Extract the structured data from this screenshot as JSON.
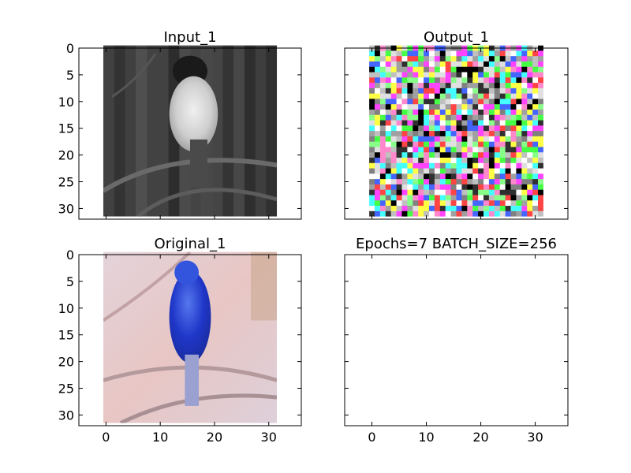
{
  "figure": {
    "background": "#ffffff",
    "axis_color": "#000000"
  },
  "chart_data": [
    {
      "type": "image",
      "title": "Input_1",
      "colormap": "grayscale",
      "image_content": "grayscale bird perched on a branch",
      "xlim": [
        -5,
        36
      ],
      "ylim": [
        32,
        0
      ],
      "xticks": [],
      "yticks": [
        0,
        5,
        10,
        15,
        20,
        25,
        30
      ],
      "ytick_labels": [
        "0",
        "5",
        "10",
        "15",
        "20",
        "25",
        "30"
      ],
      "image_extent": [
        -0.5,
        31.5,
        31.5,
        -0.5
      ]
    },
    {
      "type": "image",
      "title": "Output_1",
      "colormap": "rgb",
      "image_content": "colorful random pixel noise",
      "xlim": [
        -5,
        36
      ],
      "ylim": [
        32,
        0
      ],
      "xticks": [],
      "yticks": [
        0,
        5,
        10,
        15,
        20,
        25,
        30
      ],
      "ytick_labels": [],
      "image_extent": [
        -0.5,
        31.5,
        31.5,
        -0.5
      ]
    },
    {
      "type": "image",
      "title": "Original_1",
      "colormap": "rgb",
      "image_content": "blue bird perched on a branch against a pink background",
      "xlim": [
        -5,
        36
      ],
      "ylim": [
        32,
        0
      ],
      "xticks": [
        0,
        10,
        20,
        30
      ],
      "xtick_labels": [
        "0",
        "10",
        "20",
        "30"
      ],
      "yticks": [
        0,
        5,
        10,
        15,
        20,
        25,
        30
      ],
      "ytick_labels": [
        "0",
        "5",
        "10",
        "15",
        "20",
        "25",
        "30"
      ],
      "image_extent": [
        -0.5,
        31.5,
        31.5,
        -0.5
      ]
    },
    {
      "type": "image",
      "title": "Epochs=7 BATCH_SIZE=256",
      "colormap": "none",
      "image_content": "empty",
      "xlim": [
        -5,
        36
      ],
      "ylim": [
        32,
        0
      ],
      "xticks": [
        0,
        10,
        20,
        30
      ],
      "xtick_labels": [
        "0",
        "10",
        "20",
        "30"
      ],
      "yticks": [
        0,
        5,
        10,
        15,
        20,
        25,
        30
      ],
      "ytick_labels": [],
      "image_extent": null
    }
  ]
}
